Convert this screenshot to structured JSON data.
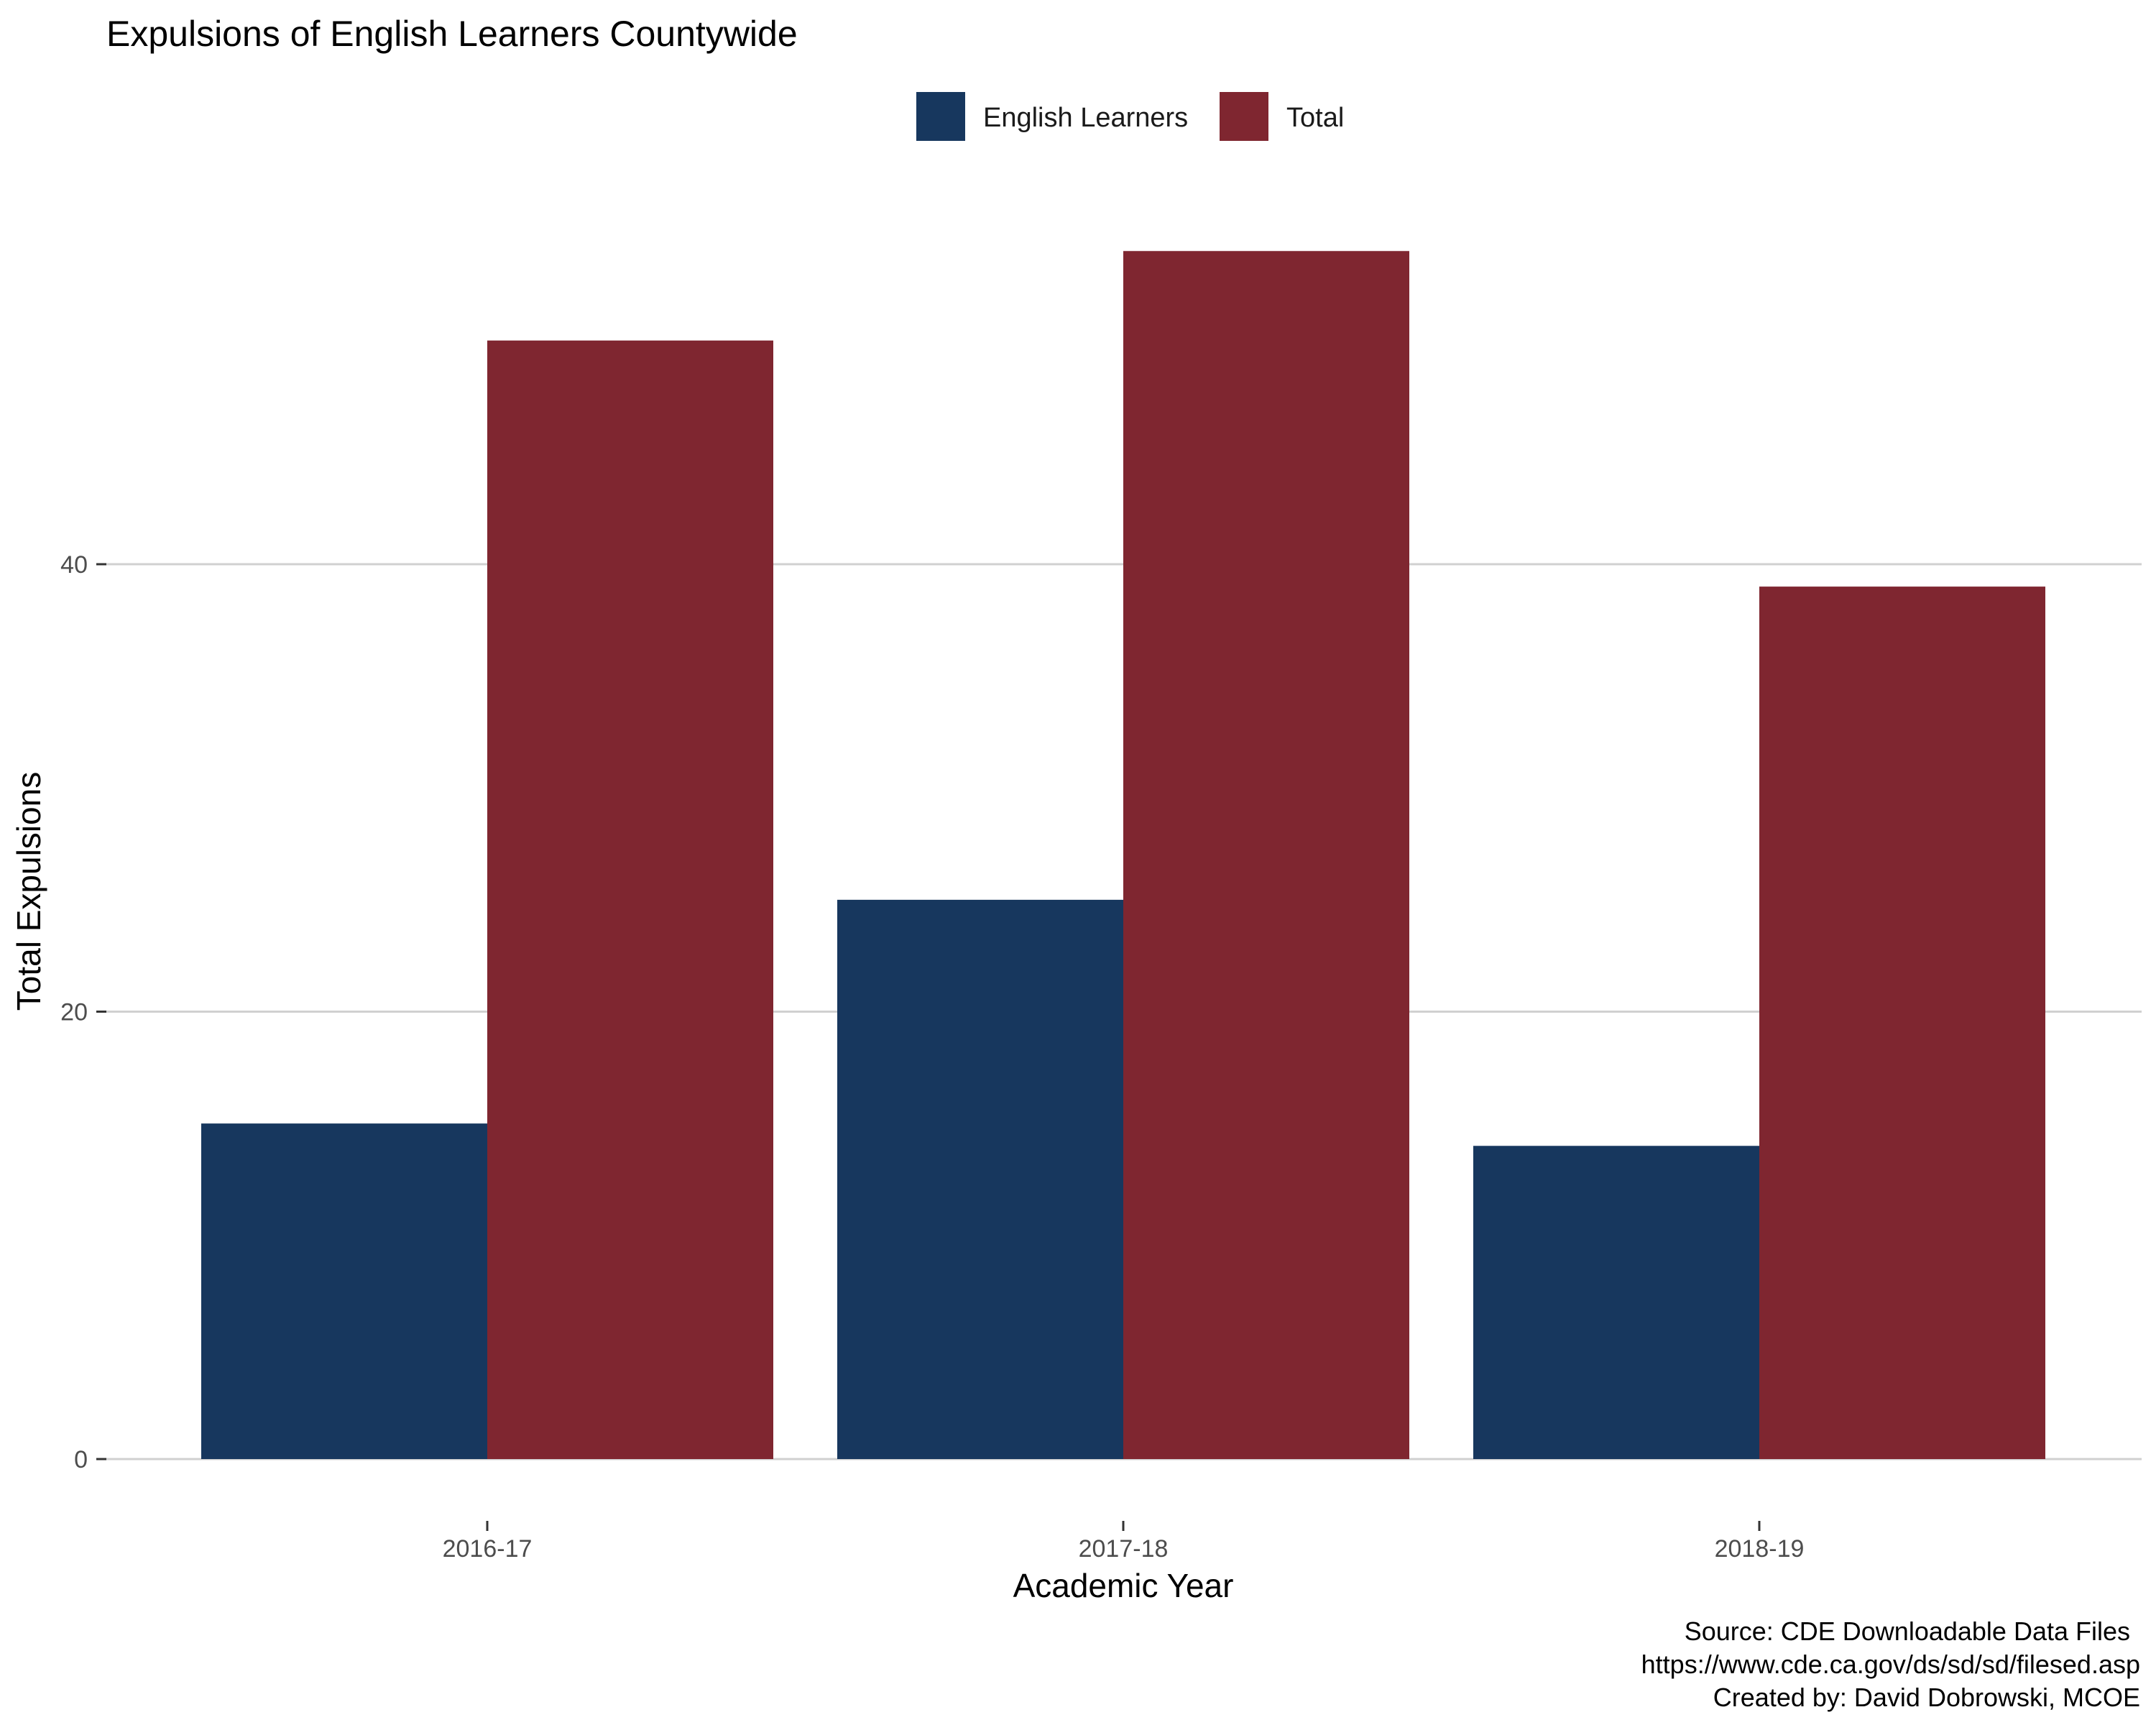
{
  "chart_data": {
    "type": "bar",
    "title": "Expulsions of English Learners Countywide",
    "xlabel": "Academic Year",
    "ylabel": "Total Expulsions",
    "categories": [
      "2016-17",
      "2017-18",
      "2018-19"
    ],
    "series": [
      {
        "name": "English Learners",
        "color": "#17375e",
        "values": [
          15,
          25,
          14
        ]
      },
      {
        "name": "Total",
        "color": "#7f2630",
        "values": [
          50,
          54,
          39
        ]
      }
    ],
    "ylim": [
      0,
      54
    ],
    "yticks": [
      0,
      20,
      40
    ],
    "grid": true,
    "legend_position": "top",
    "caption": [
      "Source: CDE Downloadable Data Files",
      "https://www.cde.ca.gov/ds/sd/sd/filesed.asp",
      "Created by: David Dobrowski, MCOE"
    ]
  }
}
